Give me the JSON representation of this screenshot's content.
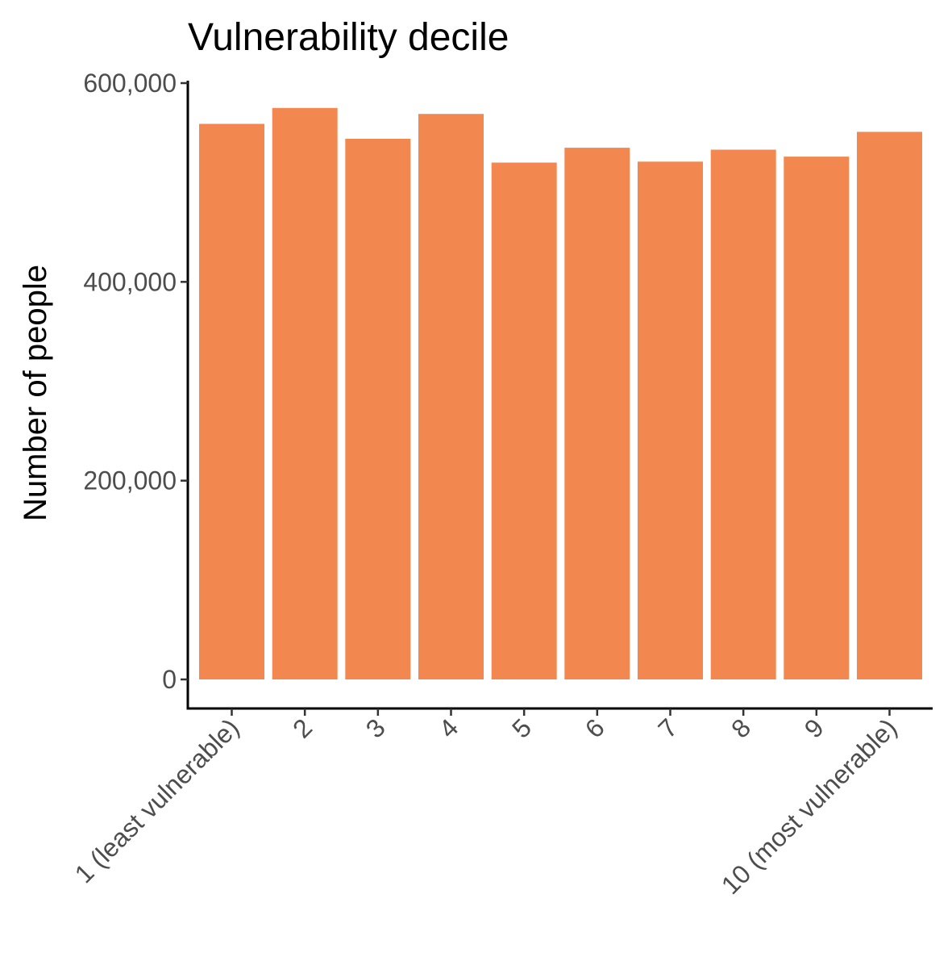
{
  "chart_data": {
    "type": "bar",
    "title": "Vulnerability decile",
    "xlabel": "",
    "ylabel": "Number of people",
    "categories": [
      "1 (least vulnerable)",
      "2",
      "3",
      "4",
      "5",
      "6",
      "7",
      "8",
      "9",
      "10 (most vulnerable)"
    ],
    "values": [
      559000,
      575000,
      544000,
      569000,
      520000,
      535000,
      521000,
      533000,
      526000,
      551000
    ],
    "ylim": [
      0,
      600000
    ],
    "yticks": [
      0,
      200000,
      400000,
      600000
    ],
    "ytick_labels": [
      "0",
      "200,000",
      "400,000",
      "600,000"
    ],
    "bar_color": "#F2884F",
    "grid": false,
    "legend": "none"
  }
}
